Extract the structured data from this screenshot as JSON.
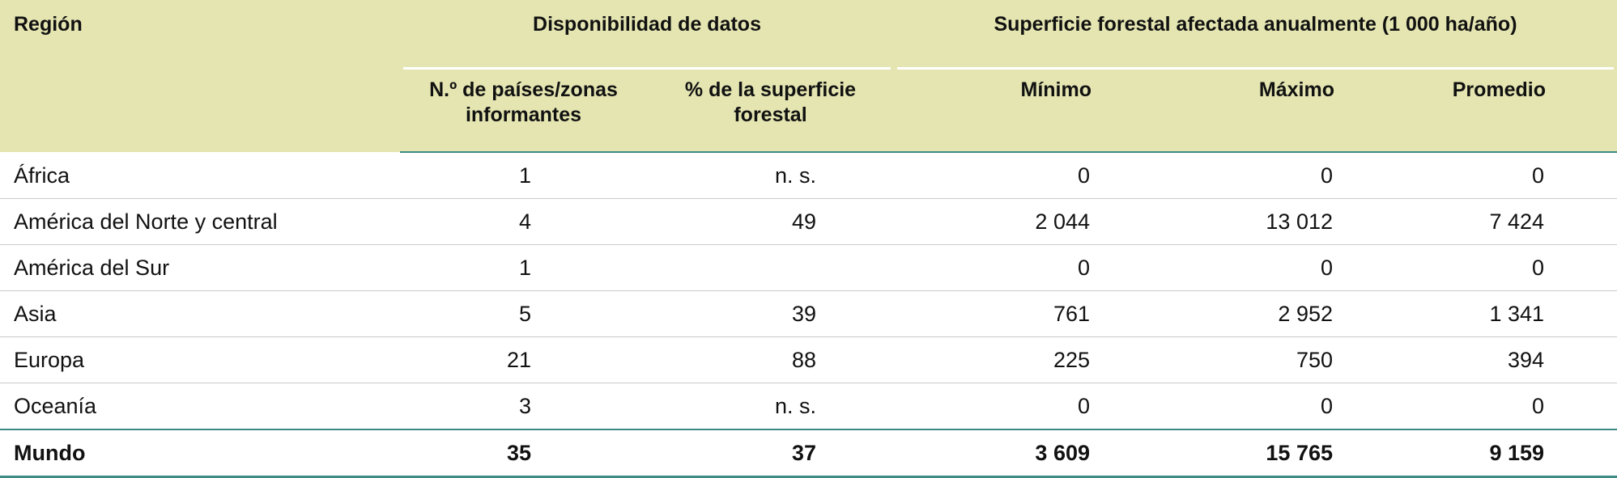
{
  "header": {
    "region": "Región",
    "group_availability": "Disponibilidad de datos",
    "group_area": "Superficie forestal afectada anualmente (1 000 ha/año)",
    "countries_line1": "N.º de países/zonas",
    "countries_line2": "informantes",
    "forest_pct_line1": "% de la superficie",
    "forest_pct_line2": "forestal",
    "min": "Mínimo",
    "max": "Máximo",
    "avg": "Promedio"
  },
  "rows": [
    {
      "region": "África",
      "countries": "1",
      "forest_pct": "n. s.",
      "min": "0",
      "max": "0",
      "avg": "0"
    },
    {
      "region": "América del Norte y central",
      "countries": "4",
      "forest_pct": "49",
      "min": "2 044",
      "max": "13 012",
      "avg": "7 424"
    },
    {
      "region": "América del Sur",
      "countries": "1",
      "forest_pct": "",
      "min": "0",
      "max": "0",
      "avg": "0"
    },
    {
      "region": "Asia",
      "countries": "5",
      "forest_pct": "39",
      "min": "761",
      "max": "2 952",
      "avg": "1 341"
    },
    {
      "region": "Europa",
      "countries": "21",
      "forest_pct": "88",
      "min": "225",
      "max": "750",
      "avg": "394"
    },
    {
      "region": "Oceanía",
      "countries": "3",
      "forest_pct": "n. s.",
      "min": "0",
      "max": "0",
      "avg": "0"
    }
  ],
  "total": {
    "region": "Mundo",
    "countries": "35",
    "forest_pct": "37",
    "min": "3 609",
    "max": "15 765",
    "avg": "9 159"
  },
  "colors": {
    "header_bg": "#e4e5b1",
    "accent_rule": "#3d8a86",
    "row_rule": "#c9c9c9"
  }
}
